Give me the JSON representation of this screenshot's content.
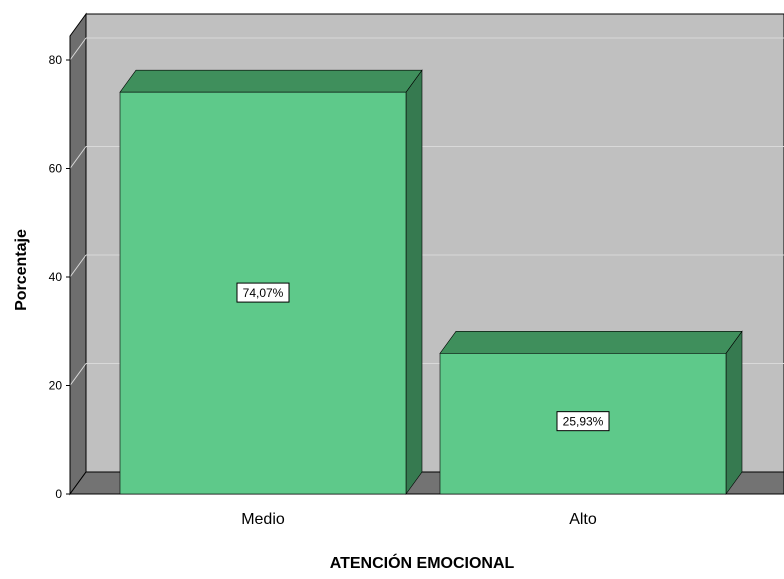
{
  "chart_data": {
    "type": "bar",
    "categories": [
      "Medio",
      "Alto"
    ],
    "values": [
      74.07,
      25.93
    ],
    "data_labels": [
      "74,07%",
      "25,93%"
    ],
    "xlabel": "ATENCIÓN EMOCIONAL",
    "ylabel": "Porcentaje",
    "ylim": [
      0,
      80
    ],
    "yticks": [
      "0",
      "20",
      "40",
      "60",
      "80"
    ],
    "grid": true,
    "style": "3d",
    "colors": {
      "bar_front": "#5ec98a",
      "bar_top": "#3f8f5c",
      "bar_side": "#367a50",
      "wall": "#c0c0c0",
      "side_wall": "#6e6e6e",
      "floor": "#737373",
      "gridline": "#d9d9d9"
    }
  }
}
